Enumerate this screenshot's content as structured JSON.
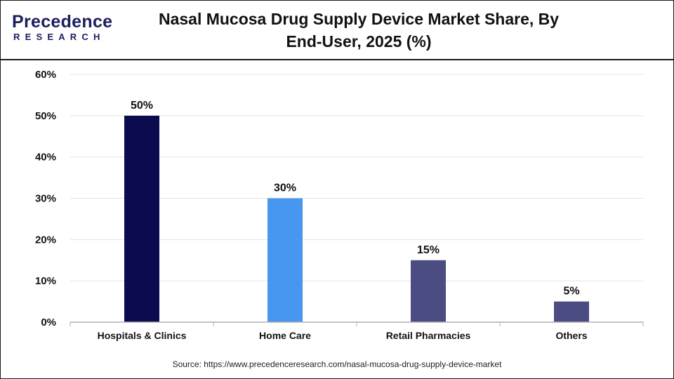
{
  "header": {
    "logo_text": "Precedence",
    "logo_subtext": "RESEARCH",
    "title": "Nasal Mucosa Drug Supply Device Market Share, By End-User, 2025 (%)"
  },
  "colors": {
    "hospitals": "#0b0b4f",
    "home_care": "#4796f0",
    "retail": "#4b4d82",
    "others": "#4b4d82",
    "gridline": "#e3e3e3",
    "axis": "#b0b0b0",
    "brand": "#1c1f5e"
  },
  "chart_data": {
    "type": "bar",
    "title": "Nasal Mucosa Drug Supply Device Market Share, By End-User, 2025 (%)",
    "xlabel": "",
    "ylabel": "",
    "categories": [
      "Hospitals & Clinics",
      "Home Care",
      "Retail Pharmacies",
      "Others"
    ],
    "values": [
      50,
      30,
      15,
      5
    ],
    "data_labels": [
      "50%",
      "30%",
      "15%",
      "5%"
    ],
    "ylim": [
      0,
      60
    ],
    "yticks": [
      "0%",
      "10%",
      "20%",
      "30%",
      "40%",
      "50%",
      "60%"
    ],
    "grid": true,
    "legend": "none"
  },
  "footer": {
    "source": "Source: https://www.precedenceresearch.com/nasal-mucosa-drug-supply-device-market"
  }
}
